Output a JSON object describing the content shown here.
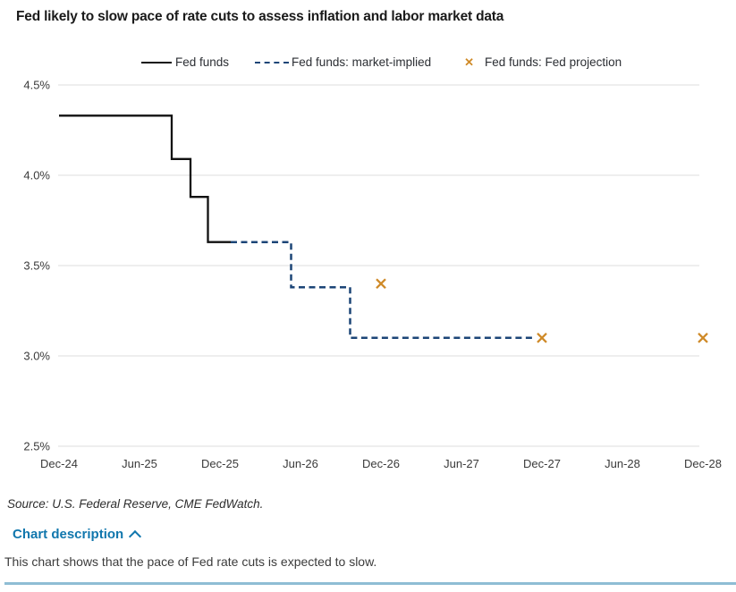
{
  "title": "Fed likely to slow pace of rate cuts to assess inflation and labor market data",
  "legend": [
    {
      "label": "Fed funds",
      "swatch": "solid-line"
    },
    {
      "label": "Fed funds: market-implied",
      "swatch": "dashed-line"
    },
    {
      "label": "Fed funds: Fed projection",
      "swatch": "x-marker"
    }
  ],
  "colors": {
    "fed_funds": "#111111",
    "market_implied": "#1c4577",
    "fed_projection": "#cf8a28",
    "gridline": "#e4e4e4",
    "axis_text": "#3a3a3a",
    "description_link": "#1177ad",
    "bottom_rule": "#8fbdd4"
  },
  "chart_data": {
    "type": "line",
    "title": "Fed likely to slow pace of rate cuts to assess inflation and labor market data",
    "xlabel": "",
    "ylabel": "",
    "grid": "horizontal",
    "legend_position": "top",
    "ylim": [
      2.5,
      4.5
    ],
    "y_ticks": [
      4.5,
      4.0,
      3.5,
      3.0,
      2.5
    ],
    "y_tick_labels": [
      "4.5%",
      "4.0%",
      "3.5%",
      "3.0%",
      "2.5%"
    ],
    "x_tick_labels": [
      "Dec-24",
      "Jun-25",
      "Dec-25",
      "Jun-26",
      "Dec-26",
      "Jun-27",
      "Dec-27",
      "Jun-28",
      "Dec-28"
    ],
    "x_tick_months_from_dec24": [
      0,
      6,
      12,
      18,
      24,
      30,
      36,
      42,
      48
    ],
    "xlim_months_from_dec24": [
      0,
      48
    ],
    "series": [
      {
        "name": "Fed funds",
        "style": "solid",
        "color_key": "fed_funds",
        "points_month_value": [
          [
            0,
            4.33
          ],
          [
            8.4,
            4.33
          ],
          [
            8.4,
            4.09
          ],
          [
            9.8,
            4.09
          ],
          [
            9.8,
            3.88
          ],
          [
            11.1,
            3.88
          ],
          [
            11.1,
            3.63
          ],
          [
            12.8,
            3.63
          ]
        ]
      },
      {
        "name": "Fed funds: market-implied",
        "style": "dashed",
        "color_key": "market_implied",
        "points_month_value": [
          [
            12.8,
            3.63
          ],
          [
            17.3,
            3.63
          ],
          [
            17.3,
            3.38
          ],
          [
            21.7,
            3.38
          ],
          [
            21.7,
            3.1
          ],
          [
            35.4,
            3.1
          ]
        ]
      },
      {
        "name": "Fed funds: Fed projection",
        "style": "x-markers",
        "color_key": "fed_projection",
        "points_month_value": [
          [
            24,
            3.4
          ],
          [
            36,
            3.1
          ],
          [
            48,
            3.1
          ]
        ],
        "point_labels": [
          "Dec-26: 3.4%",
          "Dec-27: 3.1%",
          "Dec-28: 3.1%"
        ]
      }
    ]
  },
  "source": "Source: U.S. Federal Reserve, CME FedWatch.",
  "chart_description": {
    "label": "Chart description",
    "text": "This chart shows that the pace of Fed rate cuts is expected to slow."
  }
}
